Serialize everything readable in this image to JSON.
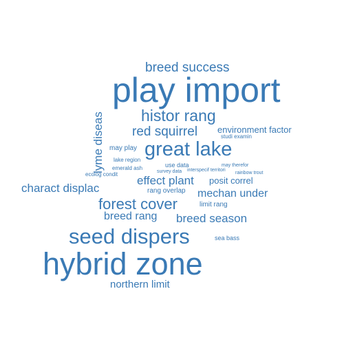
{
  "cloud": {
    "color": "#3a7ab5",
    "words": [
      {
        "id": "play-import",
        "text": "play import"
      },
      {
        "id": "hybrid-zone",
        "text": "hybrid zone"
      },
      {
        "id": "seed-dispers",
        "text": "seed dispers"
      },
      {
        "id": "great-lake",
        "text": "great lake"
      },
      {
        "id": "forest-cover",
        "text": "forest cover"
      },
      {
        "id": "histor-rang",
        "text": "histor rang"
      },
      {
        "id": "breed-success",
        "text": "breed success"
      },
      {
        "id": "red-squirrel",
        "text": "red squirrel"
      },
      {
        "id": "lyme-diseas",
        "text": "lyme diseas"
      },
      {
        "id": "charact-displac",
        "text": "charact displac"
      },
      {
        "id": "effect-plant",
        "text": "effect plant"
      },
      {
        "id": "mechan-under",
        "text": "mechan under"
      },
      {
        "id": "breed-season",
        "text": "breed season"
      },
      {
        "id": "breed-rang",
        "text": "breed rang"
      },
      {
        "id": "northern-limit",
        "text": "northern limit"
      },
      {
        "id": "environment-factor",
        "text": "environment factor"
      },
      {
        "id": "posit-correl",
        "text": "posit correl"
      },
      {
        "id": "may-play",
        "text": "may play"
      },
      {
        "id": "rang-overlap",
        "text": "rang overlap"
      },
      {
        "id": "limit-rang",
        "text": "limit rang"
      },
      {
        "id": "use-data",
        "text": "use data"
      },
      {
        "id": "studi-examin",
        "text": "studi examin"
      },
      {
        "id": "lake-region",
        "text": "lake region"
      },
      {
        "id": "emerald-ash",
        "text": "emerald ash"
      },
      {
        "id": "ecolog-condit",
        "text": "ecolog condit"
      },
      {
        "id": "survey-data",
        "text": "survey data"
      },
      {
        "id": "interspecif-territori",
        "text": "interspecif territori"
      },
      {
        "id": "may-therefor",
        "text": "may therefor"
      },
      {
        "id": "rainbow-trout",
        "text": "rainbow trout"
      },
      {
        "id": "sea-bass",
        "text": "sea bass"
      }
    ]
  }
}
